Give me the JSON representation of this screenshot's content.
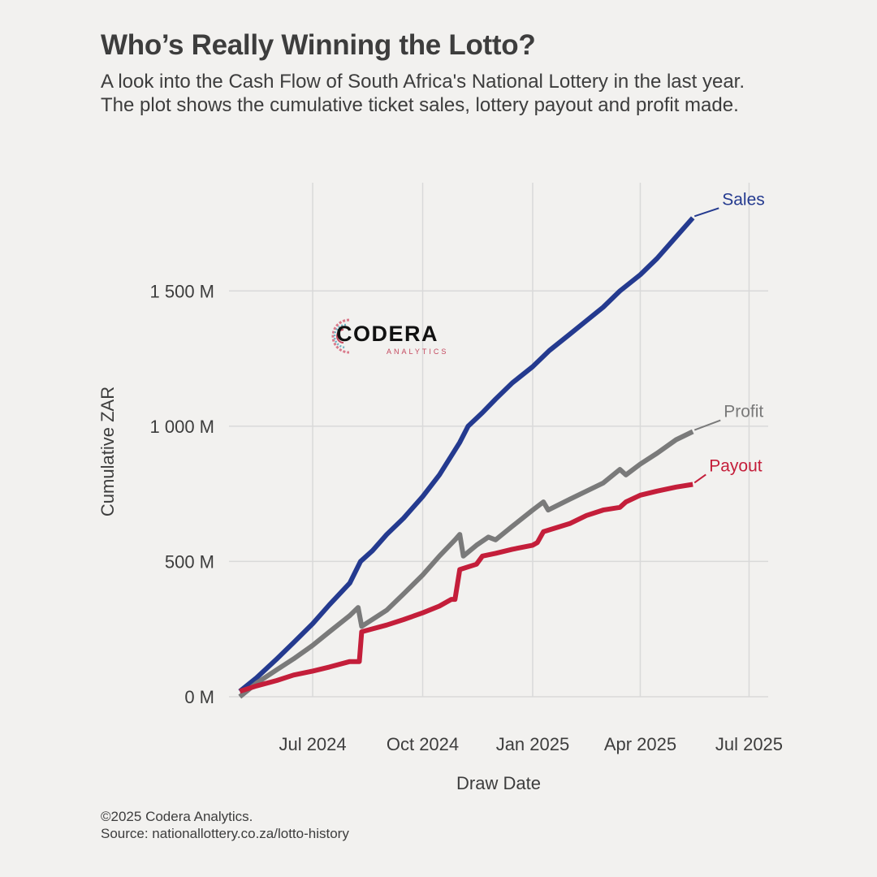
{
  "header": {
    "title": "Who’s Really Winning the Lotto?",
    "subtitle": "A look into the Cash Flow of South Africa's National Lottery in the last year. The plot shows the cumulative ticket sales, lottery payout and profit made."
  },
  "logo": {
    "word": "CODERA",
    "sub": "ANALYTICS"
  },
  "footer": {
    "copyright": "©2025 Codera Analytics.",
    "source": "Source: nationallottery.co.za/lotto-history"
  },
  "chart_data": {
    "type": "line",
    "xlabel": "Draw Date",
    "ylabel": "Cumulative ZAR",
    "xlim": [
      "2024-04-22",
      "2025-07-17"
    ],
    "ylim": [
      0,
      1900
    ],
    "x_ticks": [
      {
        "date": "2024-07-01",
        "label": "Jul 2024"
      },
      {
        "date": "2024-10-01",
        "label": "Oct 2024"
      },
      {
        "date": "2025-01-01",
        "label": "Jan 2025"
      },
      {
        "date": "2025-04-01",
        "label": "Apr 2025"
      },
      {
        "date": "2025-07-01",
        "label": "Jul 2025"
      }
    ],
    "y_ticks": [
      {
        "value": 0,
        "label": "0 M"
      },
      {
        "value": 500,
        "label": "500 M"
      },
      {
        "value": 1000,
        "label": "1 000 M"
      },
      {
        "value": 1500,
        "label": "1 500 M"
      }
    ],
    "grid": true,
    "legend": "direct labels at line ends",
    "series": [
      {
        "name": "Sales",
        "color": "#243a8f",
        "points": [
          [
            "2024-05-01",
            20
          ],
          [
            "2024-05-15",
            70
          ],
          [
            "2024-06-01",
            140
          ],
          [
            "2024-06-15",
            200
          ],
          [
            "2024-07-01",
            270
          ],
          [
            "2024-07-15",
            340
          ],
          [
            "2024-08-01",
            420
          ],
          [
            "2024-08-10",
            500
          ],
          [
            "2024-08-20",
            540
          ],
          [
            "2024-09-01",
            600
          ],
          [
            "2024-09-15",
            660
          ],
          [
            "2024-10-01",
            740
          ],
          [
            "2024-10-15",
            820
          ],
          [
            "2024-11-01",
            940
          ],
          [
            "2024-11-08",
            1000
          ],
          [
            "2024-11-20",
            1050
          ],
          [
            "2024-12-01",
            1100
          ],
          [
            "2024-12-15",
            1160
          ],
          [
            "2025-01-01",
            1220
          ],
          [
            "2025-01-15",
            1280
          ],
          [
            "2025-02-01",
            1340
          ],
          [
            "2025-02-15",
            1390
          ],
          [
            "2025-03-01",
            1440
          ],
          [
            "2025-03-15",
            1500
          ],
          [
            "2025-04-01",
            1560
          ],
          [
            "2025-04-15",
            1620
          ],
          [
            "2025-05-01",
            1700
          ],
          [
            "2025-05-15",
            1770
          ]
        ]
      },
      {
        "name": "Profit",
        "color": "#7a7a7a",
        "points": [
          [
            "2024-05-01",
            0
          ],
          [
            "2024-05-15",
            50
          ],
          [
            "2024-06-01",
            100
          ],
          [
            "2024-06-15",
            140
          ],
          [
            "2024-07-01",
            190
          ],
          [
            "2024-07-15",
            240
          ],
          [
            "2024-08-01",
            300
          ],
          [
            "2024-08-08",
            330
          ],
          [
            "2024-08-11",
            260
          ],
          [
            "2024-09-01",
            320
          ],
          [
            "2024-09-15",
            380
          ],
          [
            "2024-10-01",
            450
          ],
          [
            "2024-10-15",
            520
          ],
          [
            "2024-10-28",
            580
          ],
          [
            "2024-11-01",
            600
          ],
          [
            "2024-11-04",
            520
          ],
          [
            "2024-11-15",
            560
          ],
          [
            "2024-11-25",
            590
          ],
          [
            "2024-12-01",
            580
          ],
          [
            "2024-12-15",
            630
          ],
          [
            "2025-01-01",
            690
          ],
          [
            "2025-01-10",
            720
          ],
          [
            "2025-01-14",
            690
          ],
          [
            "2025-02-01",
            730
          ],
          [
            "2025-02-15",
            760
          ],
          [
            "2025-03-01",
            790
          ],
          [
            "2025-03-15",
            840
          ],
          [
            "2025-03-20",
            820
          ],
          [
            "2025-04-01",
            860
          ],
          [
            "2025-04-15",
            900
          ],
          [
            "2025-05-01",
            950
          ],
          [
            "2025-05-15",
            980
          ]
        ]
      },
      {
        "name": "Payout",
        "color": "#c41e3a",
        "points": [
          [
            "2024-05-01",
            20
          ],
          [
            "2024-05-15",
            40
          ],
          [
            "2024-06-01",
            60
          ],
          [
            "2024-06-15",
            80
          ],
          [
            "2024-07-01",
            95
          ],
          [
            "2024-07-15",
            110
          ],
          [
            "2024-08-01",
            130
          ],
          [
            "2024-08-09",
            130
          ],
          [
            "2024-08-11",
            240
          ],
          [
            "2024-09-01",
            265
          ],
          [
            "2024-09-15",
            285
          ],
          [
            "2024-10-01",
            310
          ],
          [
            "2024-10-15",
            335
          ],
          [
            "2024-10-25",
            360
          ],
          [
            "2024-10-28",
            360
          ],
          [
            "2024-11-01",
            470
          ],
          [
            "2024-11-15",
            490
          ],
          [
            "2024-11-20",
            520
          ],
          [
            "2024-12-01",
            530
          ],
          [
            "2024-12-15",
            545
          ],
          [
            "2025-01-01",
            560
          ],
          [
            "2025-01-05",
            570
          ],
          [
            "2025-01-10",
            610
          ],
          [
            "2025-02-01",
            640
          ],
          [
            "2025-02-15",
            670
          ],
          [
            "2025-03-01",
            690
          ],
          [
            "2025-03-15",
            700
          ],
          [
            "2025-03-20",
            720
          ],
          [
            "2025-04-01",
            745
          ],
          [
            "2025-04-15",
            760
          ],
          [
            "2025-05-01",
            775
          ],
          [
            "2025-05-15",
            785
          ]
        ]
      }
    ]
  }
}
